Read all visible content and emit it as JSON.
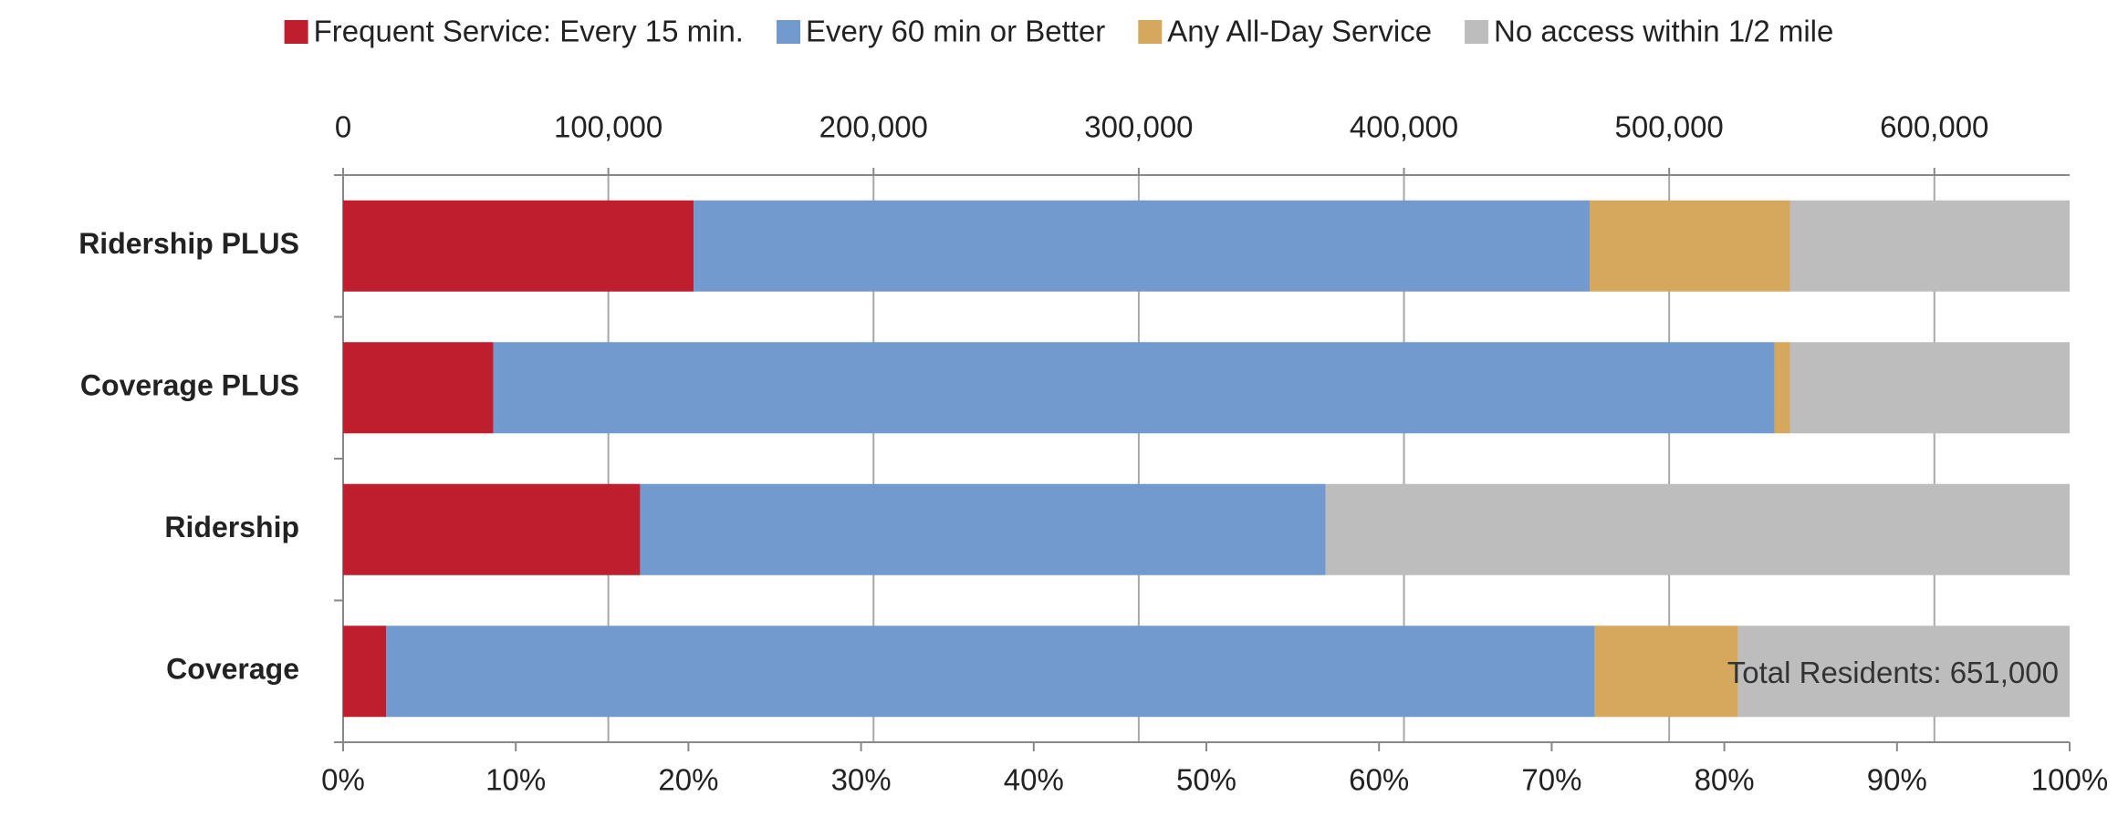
{
  "chart_data": {
    "type": "stacked-barh",
    "categories": [
      "Ridership PLUS",
      "Coverage PLUS",
      "Ridership",
      "Coverage"
    ],
    "series": [
      {
        "name": "Frequent Service: Every 15 min.",
        "color": "#be1e2d",
        "values": [
          20.3,
          8.7,
          17.2,
          2.5
        ]
      },
      {
        "name": "Every 60 min or Better",
        "color": "#729acf",
        "values": [
          51.9,
          74.2,
          39.7,
          70.0
        ]
      },
      {
        "name": "Any All-Day Service",
        "color": "#d6a85e",
        "values": [
          11.6,
          0.9,
          0,
          8.3
        ]
      },
      {
        "name": "No access within 1/2 mile",
        "color": "#bdbdbd",
        "values": [
          16.2,
          16.2,
          43.1,
          19.2
        ]
      }
    ],
    "xlim": [
      0,
      100
    ],
    "xticks": [
      {
        "value": 0,
        "label": "0%"
      },
      {
        "value": 10,
        "label": "10%"
      },
      {
        "value": 20,
        "label": "20%"
      },
      {
        "value": 30,
        "label": "30%"
      },
      {
        "value": 40,
        "label": "40%"
      },
      {
        "value": 50,
        "label": "50%"
      },
      {
        "value": 60,
        "label": "60%"
      },
      {
        "value": 70,
        "label": "70%"
      },
      {
        "value": 80,
        "label": "80%"
      },
      {
        "value": 90,
        "label": "90%"
      },
      {
        "value": 100,
        "label": "100%"
      }
    ],
    "x2lim": [
      0,
      651000
    ],
    "x2ticks": [
      0,
      {
        "value": 100000,
        "label": "100,000"
      },
      {
        "value": 200000,
        "label": "200,000"
      },
      {
        "value": 300000,
        "label": "300,000"
      },
      {
        "value": 400000,
        "label": "400,000"
      },
      {
        "value": 500000,
        "label": "500,000"
      },
      {
        "value": 600000,
        "label": "600,000"
      }
    ],
    "grid": true,
    "legend": "top",
    "annotation": "Total Residents: 651,000"
  }
}
